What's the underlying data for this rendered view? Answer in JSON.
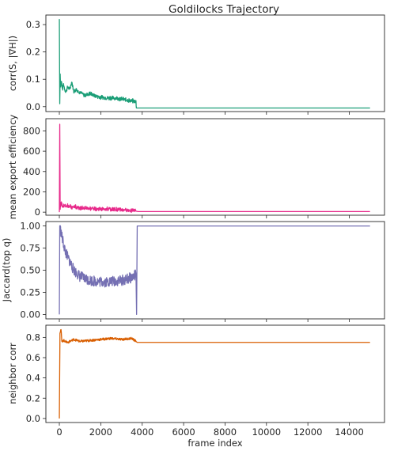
{
  "chart_data": {
    "title": "Goldilocks Trajectory",
    "xlabel": "frame index",
    "x_ticks": [
      0,
      2000,
      4000,
      6000,
      8000,
      10000,
      12000,
      14000
    ],
    "xlim": [
      -650,
      15700
    ],
    "grid": false,
    "panels": [
      {
        "type": "line",
        "ylabel": "corr(S, |∇H|)",
        "color": "#1b9e77",
        "ylim": [
          -0.018,
          0.335
        ],
        "y_ticks": [
          0.0,
          0.1,
          0.2,
          0.3
        ],
        "y_tick_labels": [
          "0.0",
          "0.1",
          "0.2",
          "0.3"
        ],
        "x": [
          0,
          20,
          40,
          60,
          100,
          150,
          200,
          300,
          400,
          500,
          600,
          700,
          800,
          1000,
          1200,
          1500,
          1800,
          2200,
          2600,
          3000,
          3400,
          3700,
          3720,
          3760,
          15000
        ],
        "values": [
          0.32,
          0.01,
          0.12,
          0.07,
          0.09,
          0.06,
          0.08,
          0.05,
          0.07,
          0.06,
          0.09,
          0.05,
          0.06,
          0.05,
          0.04,
          0.045,
          0.035,
          0.03,
          0.03,
          0.025,
          0.02,
          0.015,
          -0.005,
          -0.005,
          -0.005
        ]
      },
      {
        "type": "line",
        "ylabel": "mean export efficiency",
        "color": "#e7298a",
        "ylim": [
          -30,
          920
        ],
        "y_ticks": [
          0,
          200,
          400,
          600,
          800
        ],
        "y_tick_labels": [
          "0",
          "200",
          "400",
          "600",
          "800"
        ],
        "x": [
          0,
          20,
          40,
          60,
          100,
          150,
          200,
          300,
          400,
          600,
          800,
          1000,
          1500,
          2000,
          2500,
          3000,
          3500,
          3700,
          3800,
          15000
        ],
        "values": [
          0,
          880,
          15,
          60,
          90,
          40,
          70,
          50,
          60,
          40,
          45,
          35,
          30,
          25,
          22,
          18,
          12,
          10,
          6,
          6
        ]
      },
      {
        "type": "line",
        "ylabel": "Jaccard(top q)",
        "color": "#7570b3",
        "ylim": [
          -0.05,
          1.05
        ],
        "y_ticks": [
          0.0,
          0.25,
          0.5,
          0.75,
          1.0
        ],
        "y_tick_labels": [
          "0.00",
          "0.25",
          "0.50",
          "0.75",
          "1.00"
        ],
        "x": [
          0,
          20,
          60,
          150,
          300,
          500,
          700,
          1000,
          1300,
          1600,
          2000,
          2400,
          2800,
          3200,
          3500,
          3700,
          3730,
          3760,
          15000
        ],
        "values": [
          0.0,
          1.0,
          0.95,
          0.85,
          0.7,
          0.6,
          0.5,
          0.43,
          0.4,
          0.38,
          0.37,
          0.37,
          0.38,
          0.39,
          0.42,
          0.45,
          0.0,
          1.0,
          1.0
        ]
      },
      {
        "type": "line",
        "ylabel": "neighbor corr",
        "color": "#d95f02",
        "ylim": [
          -0.04,
          0.92
        ],
        "y_ticks": [
          0.0,
          0.2,
          0.4,
          0.6,
          0.8
        ],
        "y_tick_labels": [
          "0.0",
          "0.2",
          "0.4",
          "0.6",
          "0.8"
        ],
        "x": [
          0,
          30,
          80,
          120,
          200,
          400,
          700,
          1000,
          1500,
          2000,
          2500,
          3000,
          3500,
          3700,
          3760,
          15000
        ],
        "values": [
          0.0,
          0.85,
          0.88,
          0.76,
          0.77,
          0.75,
          0.78,
          0.76,
          0.77,
          0.78,
          0.79,
          0.78,
          0.79,
          0.76,
          0.75,
          0.75
        ]
      }
    ]
  }
}
